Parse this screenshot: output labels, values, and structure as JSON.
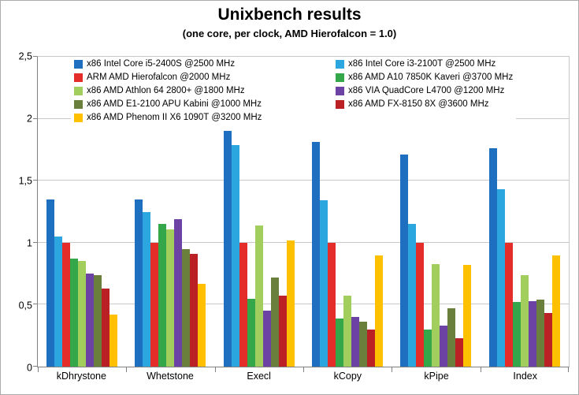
{
  "title": "Unixbench results",
  "subtitle": "(one core, per clock, AMD Hierofalcon = 1.0)",
  "chart_data": {
    "type": "bar",
    "title": "Unixbench results",
    "subtitle": "(one core, per clock, AMD Hierofalcon = 1.0)",
    "categories": [
      "kDhrystone",
      "Whetstone",
      "Execl",
      "kCopy",
      "kPipe",
      "Index"
    ],
    "series": [
      {
        "name": "x86 Intel Core i5-2400S @2500 MHz",
        "color": "#1e6fbf",
        "values": [
          1.35,
          1.35,
          1.9,
          1.81,
          1.71,
          1.76
        ]
      },
      {
        "name": "x86 Intel Core i3-2100T @2500 MHz",
        "color": "#2ba6de",
        "values": [
          1.05,
          1.25,
          1.79,
          1.34,
          1.15,
          1.43
        ]
      },
      {
        "name": "ARM AMD Hierofalcon @2000 MHz",
        "color": "#e42d28",
        "values": [
          1.0,
          1.0,
          1.0,
          1.0,
          1.0,
          1.0
        ]
      },
      {
        "name": "x86 AMD A10 7850K Kaveri @3700 MHz",
        "color": "#34a74b",
        "values": [
          0.87,
          1.15,
          0.55,
          0.39,
          0.3,
          0.52
        ]
      },
      {
        "name": "x86 AMD Athlon 64 2800+ @1800 MHz",
        "color": "#a2ce5d",
        "values": [
          0.85,
          1.11,
          1.14,
          0.57,
          0.83,
          0.74
        ]
      },
      {
        "name": "x86 VIA QuadCore L4700 @1200 MHz",
        "color": "#6c42a5",
        "values": [
          0.75,
          1.19,
          0.45,
          0.4,
          0.33,
          0.53
        ]
      },
      {
        "name": "x86 AMD E1-2100 APU Kabini @1000 MHz",
        "color": "#6b7f3c",
        "values": [
          0.74,
          0.95,
          0.72,
          0.36,
          0.47,
          0.54
        ]
      },
      {
        "name": "x86 AMD FX-8150 8X @3600 MHz",
        "color": "#bb2025",
        "values": [
          0.63,
          0.91,
          0.57,
          0.3,
          0.23,
          0.43
        ]
      },
      {
        "name": "x86 AMD Phenom II X6 1090T @3200 MHz",
        "color": "#ffc000",
        "values": [
          0.42,
          0.67,
          1.02,
          0.9,
          0.82,
          0.9
        ]
      }
    ],
    "xlabel": "",
    "ylabel": "",
    "ylim": [
      0,
      2.5
    ],
    "yticks": [
      0,
      0.5,
      1,
      1.5,
      2,
      2.5
    ],
    "ytick_labels": [
      "0",
      "0,5",
      "1",
      "1,5",
      "2",
      "2,5"
    ],
    "grid": true,
    "legend_position": "top-inside",
    "legend_columns": 2
  }
}
